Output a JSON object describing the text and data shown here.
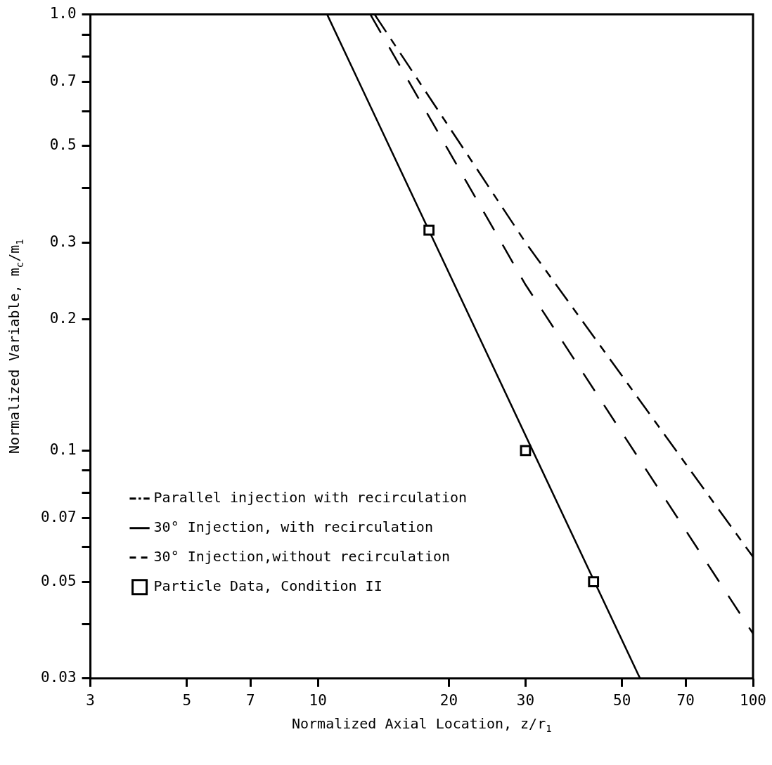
{
  "chart_data": {
    "type": "line",
    "xlabel": "Normalized Axial Location, z/r$_{1}$",
    "ylabel": "Normalized Variable, m$_{c}$/m$_{1}$",
    "log": "xy",
    "legend": "bottom left",
    "xlim": [
      3,
      100
    ],
    "ylim": [
      0.03,
      1.0
    ],
    "xticks": [
      3,
      5,
      7,
      10,
      20,
      30,
      50,
      70,
      100
    ],
    "yticks": [
      {
        "value": 0.03,
        "label": "0.03"
      },
      {
        "value": 0.04,
        "label": null
      },
      0.05,
      {
        "value": 0.06,
        "label": null
      },
      0.07,
      {
        "value": 0.08,
        "label": null
      },
      {
        "value": 0.09,
        "label": null
      },
      0.1,
      0.2,
      0.3,
      {
        "value": 0.4,
        "label": null
      },
      0.5,
      {
        "value": 0.6,
        "label": null
      },
      0.7,
      {
        "value": 0.8,
        "label": null
      },
      {
        "value": 0.9,
        "label": null
      },
      {
        "value": 1.0,
        "label": "1.0"
      }
    ],
    "series": [
      {
        "name": "Parallel injection with recirculation",
        "line_style": "dashed",
        "color": "#000000",
        "x": [
          13.5,
          30,
          100
        ],
        "values": [
          1.0,
          0.3,
          0.057
        ]
      },
      {
        "name": "30° Injection, with recirculation",
        "line_style": "solid",
        "color": "#000000",
        "x": [
          10.5,
          55
        ],
        "values": [
          1.0,
          0.03
        ]
      },
      {
        "name": "30° Injection,without recirculation",
        "line_style": "dashed",
        "color": "#000000",
        "x": [
          13.2,
          30,
          100
        ],
        "values": [
          1.0,
          0.24,
          0.038
        ]
      },
      {
        "name": "Particle Data, Condition II",
        "type": "scatter",
        "marker": "square",
        "color": "#000000",
        "x": [
          18,
          30,
          43
        ],
        "values": [
          0.32,
          0.1,
          0.05
        ]
      }
    ]
  }
}
